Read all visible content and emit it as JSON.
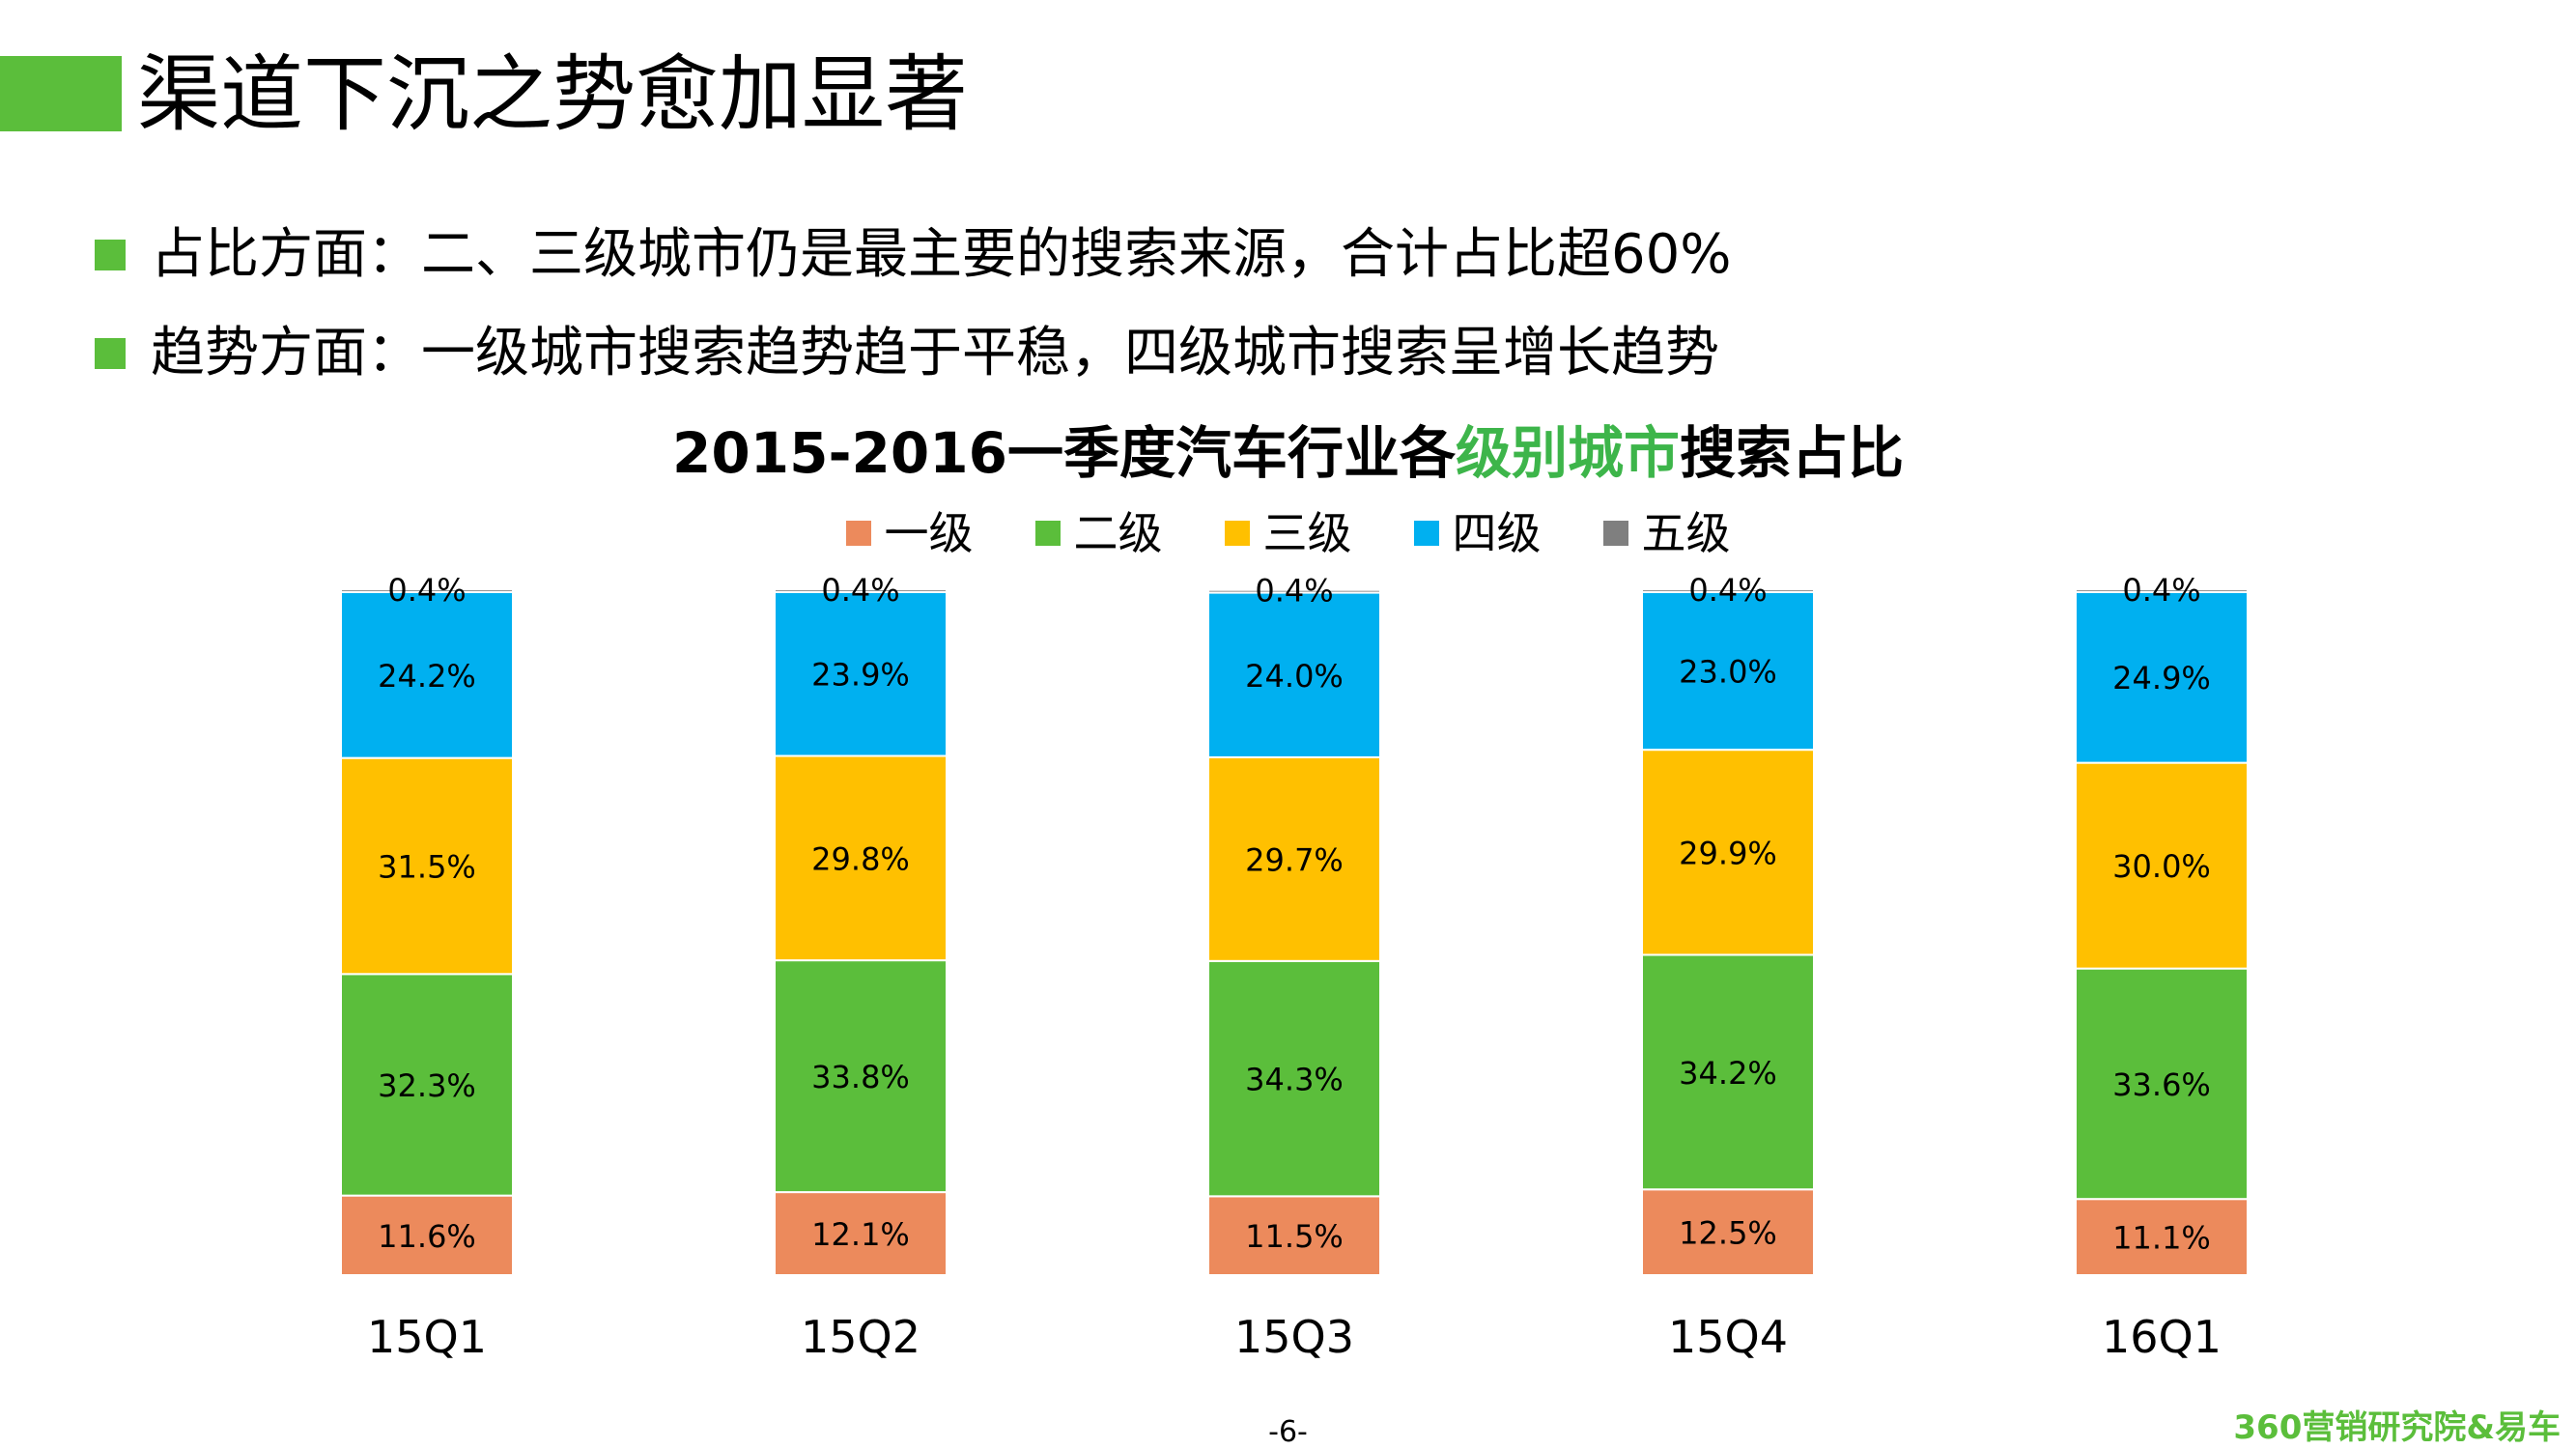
{
  "header": {
    "title": "渠道下沉之势愈加显著"
  },
  "bullets": [
    "占比方面：二、三级城市仍是最主要的搜索来源，合计占比超60%",
    "趋势方面：一级城市搜索趋势趋于平稳，四级城市搜索呈增长趋势"
  ],
  "colors": {
    "accent": "#5BBE3B",
    "title_highlight": "#3DB54A",
    "brand": "#5BBE3B",
    "series": [
      "#EC8A5C",
      "#5BBE3B",
      "#FFC000",
      "#00B0F0",
      "#7F7F7F"
    ]
  },
  "chart_data": {
    "type": "bar",
    "stacked": true,
    "title_parts": [
      "2015-2016一季度汽车行业各",
      "级别城市",
      "搜索占比"
    ],
    "categories": [
      "15Q1",
      "15Q2",
      "15Q3",
      "15Q4",
      "16Q1"
    ],
    "series": [
      {
        "name": "一级",
        "values": [
          11.6,
          12.1,
          11.5,
          12.5,
          11.1
        ],
        "labels": [
          "11.6%",
          "12.1%",
          "11.5%",
          "12.5%",
          "11.1%"
        ]
      },
      {
        "name": "二级",
        "values": [
          32.3,
          33.8,
          34.3,
          34.2,
          33.6
        ],
        "labels": [
          "32.3%",
          "33.8%",
          "34.3%",
          "34.2%",
          "33.6%"
        ]
      },
      {
        "name": "三级",
        "values": [
          31.5,
          29.8,
          29.7,
          29.9,
          30.0
        ],
        "labels": [
          "31.5%",
          "29.8%",
          "29.7%",
          "29.9%",
          "30.0%"
        ]
      },
      {
        "name": "四级",
        "values": [
          24.2,
          23.9,
          24.0,
          23.0,
          24.9
        ],
        "labels": [
          "24.2%",
          "23.9%",
          "24.0%",
          "23.0%",
          "24.9%"
        ]
      },
      {
        "name": "五级",
        "values": [
          0.4,
          0.4,
          0.4,
          0.4,
          0.4
        ],
        "labels": [
          "0.4%",
          "0.4%",
          "0.4%",
          "0.4%",
          "0.4%"
        ]
      }
    ],
    "ylim": [
      0,
      100
    ],
    "legend_position": "top",
    "grid": false
  },
  "footer": {
    "page_number": "-6-",
    "brand": "360营销研究院&易车"
  }
}
